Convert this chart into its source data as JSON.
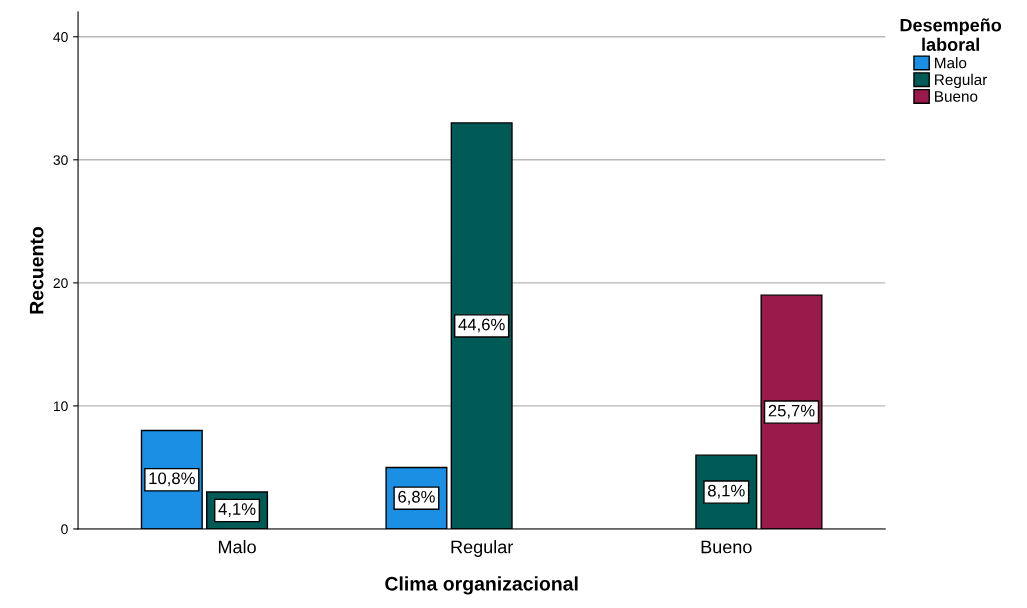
{
  "chart_data": {
    "type": "bar",
    "xlabel": "Clima organizacional",
    "ylabel": "Recuento",
    "legend_title": "Desempeño\nlaboral",
    "categories": [
      "Malo",
      "Regular",
      "Bueno"
    ],
    "series": [
      {
        "name": "Malo",
        "color": "#1b8fe3",
        "values": [
          8,
          5,
          null
        ]
      },
      {
        "name": "Regular",
        "color": "#005b57",
        "values": [
          3,
          33,
          6
        ]
      },
      {
        "name": "Bueno",
        "color": "#9b1a4c",
        "values": [
          null,
          null,
          19
        ]
      }
    ],
    "annotations": [
      "10,8%",
      "4,1%",
      "6,8%",
      "44,6%",
      "8,1%",
      "25,7%"
    ],
    "ylim": [
      0,
      42
    ],
    "yticks": [
      0,
      10,
      20,
      30,
      40
    ],
    "grid": "y",
    "legend": "top right"
  }
}
